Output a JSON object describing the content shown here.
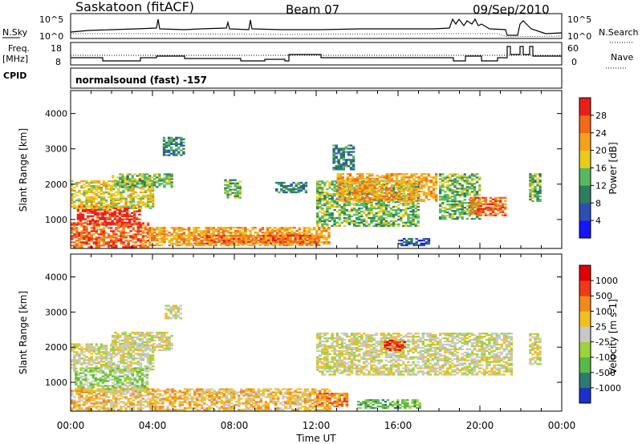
{
  "header": {
    "station": "Saskatoon (fitACF)",
    "beam": "Beam 07",
    "date": "09/Sep/2010"
  },
  "panels": {
    "sky": {
      "label": "N.Sky",
      "left_ticks": [
        "10^5",
        "10^0"
      ],
      "right_ticks": [
        "10^5",
        "10^0"
      ],
      "right_label": "N.Search"
    },
    "freq": {
      "label_line1": "Freq.",
      "label_line2": "[MHz]",
      "left_ticks": [
        "18",
        "8"
      ],
      "right_ticks": [
        "60",
        "0"
      ],
      "right_label": "Nave"
    },
    "cpid": {
      "label": "CPID",
      "value": "normalsound (fast) -157"
    }
  },
  "chart_data": [
    {
      "type": "heatmap",
      "name": "power",
      "xlabel": "",
      "ylabel": "Slant Range [km]",
      "x_ticks": [
        "00:00",
        "04:00",
        "08:00",
        "12:00",
        "16:00",
        "20:00",
        "00:00"
      ],
      "x_hours": [
        0,
        4,
        8,
        12,
        16,
        20,
        24
      ],
      "y_ticks": [
        1000,
        2000,
        3000,
        4000
      ],
      "ylim": [
        180,
        4650
      ],
      "xlim": [
        0,
        24
      ],
      "colorbar": {
        "label": "Power [dB]",
        "ticks": [
          "4",
          "8",
          "12",
          "16",
          "20",
          "24",
          "28"
        ],
        "colors": [
          "#1414ff",
          "#2d4fb4",
          "#2e7d5e",
          "#58b860",
          "#e8cc1e",
          "#f4a21c",
          "#f06a1a",
          "#e8201a"
        ]
      },
      "regions": [
        {
          "t0": 0.0,
          "t1": 3.8,
          "r0": 200,
          "r1": 900,
          "level": 6
        },
        {
          "t0": 0.3,
          "t1": 3.4,
          "r0": 850,
          "r1": 1350,
          "level": 7
        },
        {
          "t0": 0.0,
          "t1": 4.0,
          "r0": 1300,
          "r1": 2100,
          "level": 4
        },
        {
          "t0": 3.8,
          "t1": 12.6,
          "r0": 250,
          "r1": 750,
          "level": 5
        },
        {
          "t0": 6.0,
          "t1": 12.0,
          "r0": 300,
          "r1": 550,
          "level": 6
        },
        {
          "t0": 4.5,
          "t1": 5.5,
          "r0": 2800,
          "r1": 3300,
          "level": 2
        },
        {
          "t0": 2.0,
          "t1": 5.0,
          "r0": 1900,
          "r1": 2300,
          "level": 3
        },
        {
          "t0": 7.5,
          "t1": 8.3,
          "r0": 1600,
          "r1": 2100,
          "level": 3
        },
        {
          "t0": 10.0,
          "t1": 11.5,
          "r0": 1750,
          "r1": 2050,
          "level": 2
        },
        {
          "t0": 12.0,
          "t1": 17.0,
          "r0": 800,
          "r1": 2100,
          "level": 3
        },
        {
          "t0": 13.0,
          "t1": 17.8,
          "r0": 1500,
          "r1": 2300,
          "level": 5
        },
        {
          "t0": 12.8,
          "t1": 13.8,
          "r0": 2400,
          "r1": 3100,
          "level": 2
        },
        {
          "t0": 18.0,
          "t1": 20.0,
          "r0": 1000,
          "r1": 2300,
          "level": 3
        },
        {
          "t0": 19.5,
          "t1": 21.3,
          "r0": 1100,
          "r1": 1600,
          "level": 6
        },
        {
          "t0": 22.4,
          "t1": 22.9,
          "r0": 1500,
          "r1": 2300,
          "level": 3
        },
        {
          "t0": 16.0,
          "t1": 17.5,
          "r0": 250,
          "r1": 450,
          "level": 1
        }
      ]
    },
    {
      "type": "heatmap",
      "name": "velocity",
      "xlabel": "Time UT",
      "ylabel": "Slant Range [km]",
      "x_ticks": [
        "00:00",
        "04:00",
        "08:00",
        "12:00",
        "16:00",
        "20:00",
        "00:00"
      ],
      "x_hours": [
        0,
        4,
        8,
        12,
        16,
        20,
        24
      ],
      "y_ticks": [
        1000,
        2000,
        3000,
        4000
      ],
      "ylim": [
        180,
        4650
      ],
      "xlim": [
        0,
        24
      ],
      "colorbar": {
        "label": "Velocity [m s-1]",
        "ticks": [
          "1000",
          "500",
          "100",
          "25",
          "-25",
          "-100",
          "-500",
          "-1000"
        ],
        "colors": [
          "#1a32c8",
          "#2d7a70",
          "#5ab84a",
          "#9cd23c",
          "#c8c8c8",
          "#f0c020",
          "#f08a1c",
          "#ee3a1a",
          "#e00000"
        ]
      },
      "regions": [
        {
          "t0": 0.0,
          "t1": 4.0,
          "r0": 1300,
          "r1": 2100,
          "level": 4
        },
        {
          "t0": 0.2,
          "t1": 3.8,
          "r0": 700,
          "r1": 1400,
          "level": 3
        },
        {
          "t0": 0.0,
          "t1": 12.6,
          "r0": 200,
          "r1": 800,
          "level": 5
        },
        {
          "t0": 2.0,
          "t1": 5.0,
          "r0": 1900,
          "r1": 2400,
          "level": 4
        },
        {
          "t0": 4.6,
          "t1": 5.4,
          "r0": 2800,
          "r1": 3200,
          "level": 4
        },
        {
          "t0": 12.0,
          "t1": 21.5,
          "r0": 1200,
          "r1": 2400,
          "level": 4
        },
        {
          "t0": 15.3,
          "t1": 16.3,
          "r0": 1900,
          "r1": 2200,
          "level": 7
        },
        {
          "t0": 12.0,
          "t1": 13.5,
          "r0": 300,
          "r1": 700,
          "level": 6
        },
        {
          "t0": 22.4,
          "t1": 22.9,
          "r0": 1500,
          "r1": 2400,
          "level": 4
        },
        {
          "t0": 14.0,
          "t1": 17.0,
          "r0": 250,
          "r1": 500,
          "level": 2
        }
      ]
    }
  ]
}
